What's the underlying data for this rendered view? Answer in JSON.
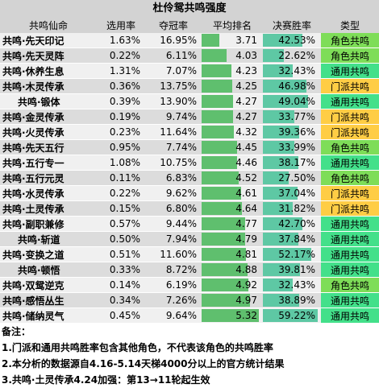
{
  "title": "杜伶鸳共鸣强度",
  "headers": {
    "name": "共鸣仙命",
    "pick_rate": "选用率",
    "win_rate": "夺冠率",
    "avg_rank": "平均排名",
    "final_win": "决赛胜率",
    "type": "类型"
  },
  "rows": [
    {
      "name": "共鸣·先天印记",
      "pick": "1.63%",
      "win": "16.95%",
      "rank": "3.71",
      "final": "42.53%",
      "type": "角色共鸣",
      "type_kind": "role",
      "indent": false
    },
    {
      "name": "共鸣·先天灵阵",
      "pick": "0.22%",
      "win": "6.11%",
      "rank": "4.03",
      "final": "22.62%",
      "type": "角色共鸣",
      "type_kind": "role",
      "indent": false
    },
    {
      "name": "共鸣·休养生息",
      "pick": "1.31%",
      "win": "7.07%",
      "rank": "4.23",
      "final": "32.43%",
      "type": "通用共鸣",
      "type_kind": "gen",
      "indent": false
    },
    {
      "name": "共鸣·木灵传承",
      "pick": "0.36%",
      "win": "13.75%",
      "rank": "4.25",
      "final": "46.98%",
      "type": "门派共鸣",
      "type_kind": "sect",
      "indent": false
    },
    {
      "name": "共鸣·锻体",
      "pick": "0.39%",
      "win": "13.90%",
      "rank": "4.27",
      "final": "49.04%",
      "type": "通用共鸣",
      "type_kind": "gen",
      "indent": true
    },
    {
      "name": "共鸣·金灵传承",
      "pick": "0.19%",
      "win": "9.74%",
      "rank": "4.27",
      "final": "33.77%",
      "type": "门派共鸣",
      "type_kind": "sect",
      "indent": false
    },
    {
      "name": "共鸣·火灵传承",
      "pick": "0.23%",
      "win": "11.64%",
      "rank": "4.32",
      "final": "39.36%",
      "type": "门派共鸣",
      "type_kind": "sect",
      "indent": false
    },
    {
      "name": "共鸣·先天五行",
      "pick": "0.95%",
      "win": "7.74%",
      "rank": "4.45",
      "final": "33.99%",
      "type": "角色共鸣",
      "type_kind": "role",
      "indent": false
    },
    {
      "name": "共鸣·五行专一",
      "pick": "1.08%",
      "win": "10.75%",
      "rank": "4.46",
      "final": "38.17%",
      "type": "通用共鸣",
      "type_kind": "gen",
      "indent": false
    },
    {
      "name": "共鸣·五行元灵",
      "pick": "0.11%",
      "win": "6.83%",
      "rank": "4.52",
      "final": "27.50%",
      "type": "角色共鸣",
      "type_kind": "role",
      "indent": false
    },
    {
      "name": "共鸣·水灵传承",
      "pick": "0.22%",
      "win": "9.62%",
      "rank": "4.61",
      "final": "37.04%",
      "type": "门派共鸣",
      "type_kind": "sect",
      "indent": false
    },
    {
      "name": "共鸣·土灵传承",
      "pick": "0.15%",
      "win": "6.80%",
      "rank": "4.64",
      "final": "31.82%",
      "type": "门派共鸣",
      "type_kind": "sect",
      "indent": false
    },
    {
      "name": "共鸣·副职兼修",
      "pick": "0.57%",
      "win": "9.44%",
      "rank": "4.77",
      "final": "42.70%",
      "type": "通用共鸣",
      "type_kind": "gen",
      "indent": false
    },
    {
      "name": "共鸣·斩道",
      "pick": "0.50%",
      "win": "7.94%",
      "rank": "4.79",
      "final": "37.84%",
      "type": "通用共鸣",
      "type_kind": "gen",
      "indent": true
    },
    {
      "name": "共鸣·变换之道",
      "pick": "0.51%",
      "win": "11.60%",
      "rank": "4.81",
      "final": "52.17%",
      "type": "通用共鸣",
      "type_kind": "gen",
      "indent": false
    },
    {
      "name": "共鸣·顿悟",
      "pick": "0.33%",
      "win": "8.72%",
      "rank": "4.88",
      "final": "39.81%",
      "type": "通用共鸣",
      "type_kind": "gen",
      "indent": true
    },
    {
      "name": "共鸣·双鸳逆克",
      "pick": "0.14%",
      "win": "6.19%",
      "rank": "4.92",
      "final": "32.43%",
      "type": "角色共鸣",
      "type_kind": "role",
      "indent": false
    },
    {
      "name": "共鸣·感悟丛生",
      "pick": "0.34%",
      "win": "7.26%",
      "rank": "4.97",
      "final": "38.89%",
      "type": "通用共鸣",
      "type_kind": "gen",
      "indent": false
    },
    {
      "name": "共鸣·储纳灵气",
      "pick": "0.45%",
      "win": "9.64%",
      "rank": "5.32",
      "final": "59.22%",
      "type": "通用共鸣",
      "type_kind": "gen",
      "indent": false
    }
  ],
  "notes": [
    "备注：",
    "1.门派和通用共鸣胜率包含其他角色，不代表该角色的共鸣胜率",
    "2.本分析的数据源自4.16-5.14天梯4000分以上的官方统计结果",
    "3.共鸣·土灵传承4.24加强：第13→11轮起生效"
  ],
  "colors": {
    "role": "#7edd58",
    "sect": "#ffcd45",
    "gen": "#43e08a",
    "rank_bar": "#5fbf6e",
    "final_bar": "#5ec8a4"
  }
}
